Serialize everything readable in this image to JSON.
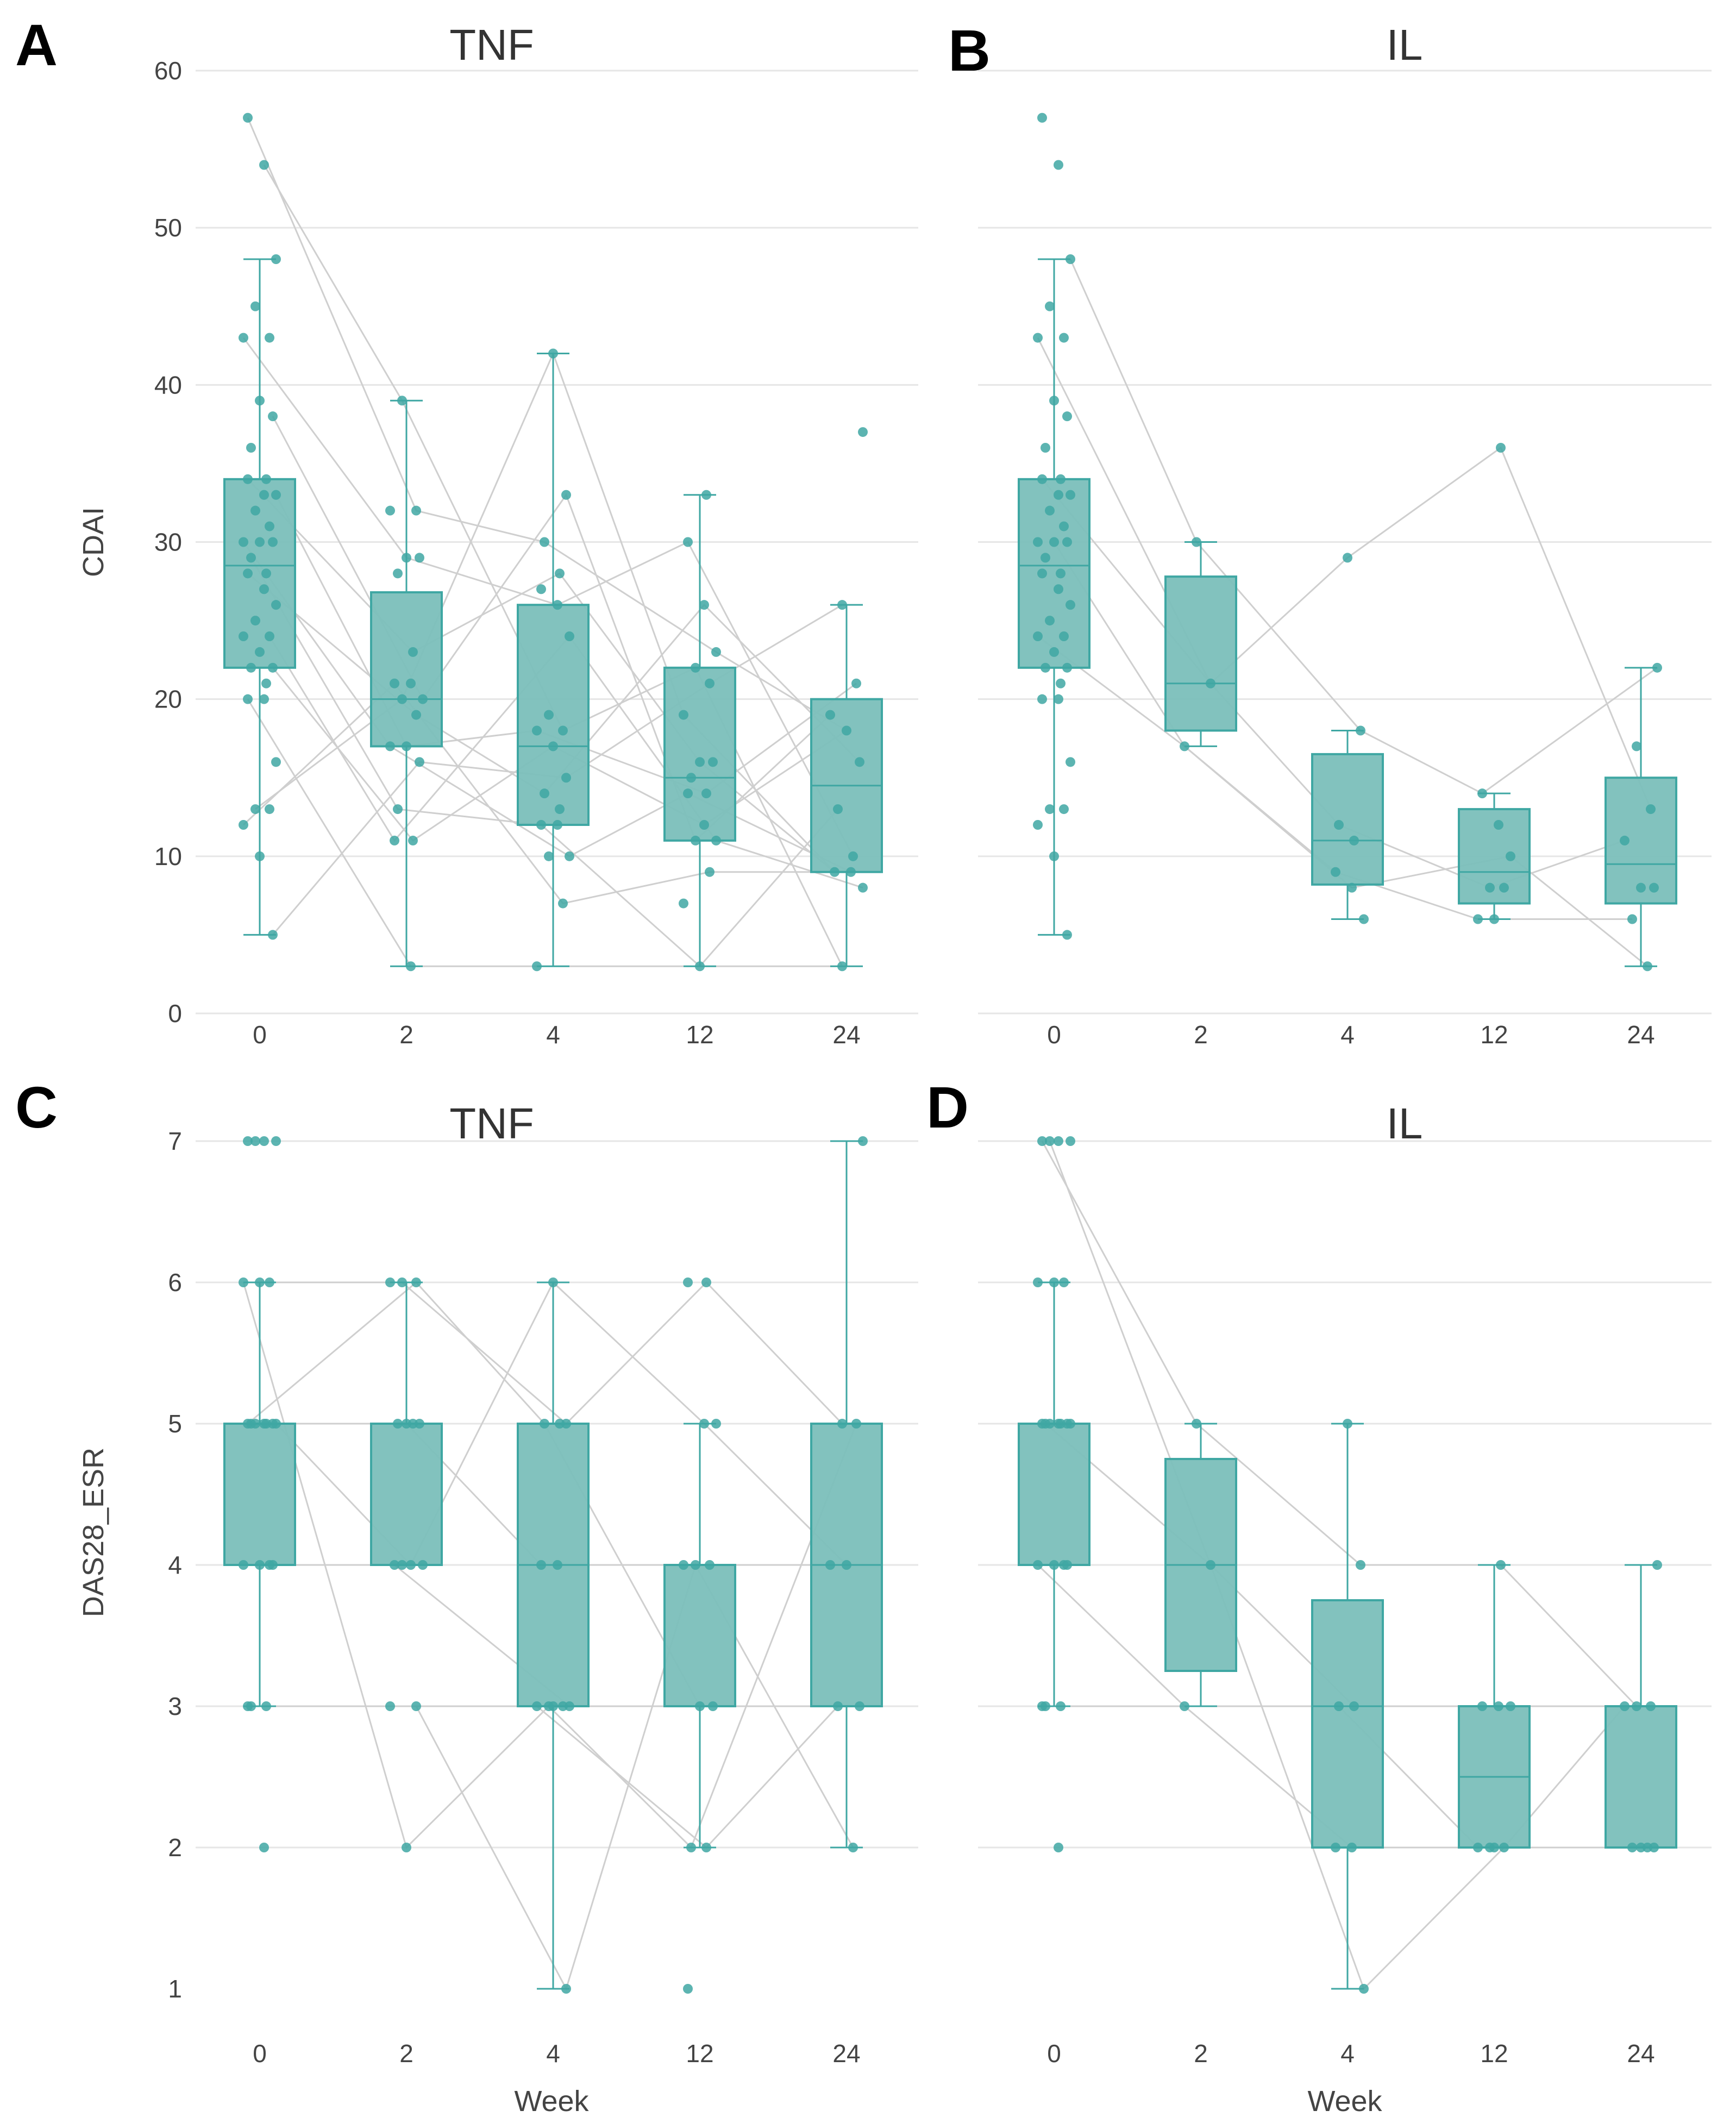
{
  "colors": {
    "box": "#3fa7a3",
    "box_fill": "#7bbfbb",
    "point": "#3fa7a3",
    "line": "#cfcfcf",
    "grid": "#e6e6e6"
  },
  "chart_data": [
    {
      "panel": "A",
      "title": "TNF",
      "type": "box",
      "ylabel": "CDAI",
      "xlabel": "",
      "categories": [
        "0",
        "2",
        "4",
        "12",
        "24"
      ],
      "ylim": [
        0,
        60
      ],
      "yticks": [
        0,
        10,
        20,
        30,
        40,
        50,
        60
      ],
      "boxes": [
        {
          "q1": 22,
          "median": 28.5,
          "q3": 34,
          "lo": 5,
          "hi": 48
        },
        {
          "q1": 17,
          "median": 20,
          "q3": 26.8,
          "lo": 3,
          "hi": 39
        },
        {
          "q1": 12,
          "median": 17,
          "q3": 26,
          "lo": 3,
          "hi": 42
        },
        {
          "q1": 11,
          "median": 15,
          "q3": 22,
          "lo": 3,
          "hi": 33
        },
        {
          "q1": 9,
          "median": 14.5,
          "q3": 20,
          "lo": 3,
          "hi": 26
        }
      ],
      "points": [
        [
          57,
          54,
          48,
          45,
          43,
          43,
          39,
          38,
          36,
          34,
          34,
          33,
          33,
          32,
          31,
          30,
          30,
          30,
          29,
          28,
          28,
          27,
          26,
          25,
          24,
          24,
          23,
          22,
          22,
          21,
          20,
          20,
          16,
          13,
          13,
          12,
          10,
          5
        ],
        [
          39,
          32,
          32,
          29,
          29,
          28,
          23,
          21,
          21,
          20,
          20,
          19,
          17,
          17,
          16,
          13,
          11,
          11,
          3
        ],
        [
          42,
          33,
          30,
          28,
          27,
          26,
          24,
          19,
          18,
          18,
          17,
          15,
          14,
          13,
          12,
          12,
          10,
          10,
          7,
          3
        ],
        [
          33,
          30,
          26,
          23,
          22,
          21,
          19,
          16,
          16,
          15,
          14,
          14,
          12,
          11,
          11,
          9,
          7,
          3
        ],
        [
          37,
          26,
          21,
          19,
          18,
          16,
          13,
          10,
          9,
          9,
          8,
          3
        ]
      ],
      "paths": [
        [
          0,
          1,
          2,
          3,
          4
        ],
        [
          1,
          0,
          8,
          4,
          11
        ],
        [
          5,
          3,
          5,
          1,
          7
        ],
        [
          7,
          9,
          1,
          14,
          3
        ],
        [
          10,
          6,
          3,
          7,
          8
        ],
        [
          12,
          13,
          9,
          10,
          2
        ],
        [
          15,
          12,
          16,
          11,
          9
        ],
        [
          18,
          15,
          14,
          17,
          6
        ],
        [
          20,
          11,
          12,
          2,
          5
        ],
        [
          24,
          17,
          6,
          13,
          10
        ],
        [
          27,
          16,
          10,
          12,
          4
        ],
        [
          30,
          18,
          19,
          17,
          11
        ],
        [
          33,
          10,
          0,
          6,
          8
        ],
        [
          35,
          7,
          18,
          15,
          9
        ],
        [
          37,
          14,
          11,
          5,
          1
        ]
      ]
    },
    {
      "panel": "B",
      "title": "IL",
      "type": "box",
      "ylabel": "",
      "xlabel": "",
      "categories": [
        "0",
        "2",
        "4",
        "12",
        "24"
      ],
      "ylim": [
        0,
        60
      ],
      "yticks": [
        0,
        10,
        20,
        30,
        40,
        50,
        60
      ],
      "boxes": [
        {
          "q1": 22,
          "median": 28.5,
          "q3": 34,
          "lo": 5,
          "hi": 48
        },
        {
          "q1": 18,
          "median": 21,
          "q3": 27.8,
          "lo": 17,
          "hi": 30
        },
        {
          "q1": 8.2,
          "median": 11,
          "q3": 16.5,
          "lo": 6,
          "hi": 18
        },
        {
          "q1": 7,
          "median": 9,
          "q3": 13,
          "lo": 6,
          "hi": 14
        },
        {
          "q1": 7,
          "median": 9.5,
          "q3": 15,
          "lo": 3,
          "hi": 22
        }
      ],
      "points": [
        [
          57,
          54,
          48,
          45,
          43,
          43,
          39,
          38,
          36,
          34,
          34,
          33,
          33,
          32,
          31,
          30,
          30,
          30,
          29,
          28,
          28,
          27,
          26,
          25,
          24,
          24,
          23,
          22,
          22,
          21,
          20,
          20,
          16,
          13,
          13,
          12,
          10,
          5
        ],
        [
          30,
          21,
          17
        ],
        [
          29,
          18,
          12,
          11,
          9,
          8,
          6
        ],
        [
          36,
          14,
          12,
          10,
          8,
          8,
          6,
          6
        ],
        [
          22,
          17,
          13,
          11,
          8,
          8,
          6,
          3
        ]
      ],
      "paths": [
        [
          2,
          0,
          1,
          1,
          0
        ],
        [
          10,
          1,
          2,
          4,
          3
        ],
        [
          16,
          2,
          4,
          6,
          6
        ],
        [
          5,
          1,
          0,
          0,
          2
        ],
        [
          25,
          2,
          5,
          3,
          7
        ]
      ]
    },
    {
      "panel": "C",
      "title": "TNF",
      "type": "box",
      "ylabel": "DAS28_ESR",
      "xlabel": "Week",
      "categories": [
        "0",
        "2",
        "4",
        "12",
        "24"
      ],
      "ylim": [
        0.5,
        7.5
      ],
      "yticks": [
        1,
        2,
        3,
        4,
        5,
        6,
        7
      ],
      "boxes": [
        {
          "q1": 4,
          "median": 5,
          "q3": 5,
          "lo": 3,
          "hi": 6
        },
        {
          "q1": 4,
          "median": 5,
          "q3": 5,
          "lo": 4,
          "hi": 6
        },
        {
          "q1": 3,
          "median": 4,
          "q3": 5,
          "lo": 1,
          "hi": 6
        },
        {
          "q1": 3,
          "median": 3,
          "q3": 4,
          "lo": 2,
          "hi": 5
        },
        {
          "q1": 3,
          "median": 4,
          "q3": 5,
          "lo": 2,
          "hi": 7
        }
      ],
      "points": [
        [
          7,
          7,
          7,
          7,
          6,
          6,
          6,
          5,
          5,
          5,
          5,
          5,
          5,
          5,
          4,
          4,
          4,
          4,
          3,
          3,
          3,
          2
        ],
        [
          6,
          6,
          6,
          5,
          5,
          5,
          5,
          4,
          4,
          4,
          4,
          3,
          3,
          2
        ],
        [
          6,
          5,
          5,
          5,
          4,
          4,
          3,
          3,
          3,
          3,
          3,
          1
        ],
        [
          6,
          6,
          5,
          5,
          4,
          4,
          4,
          3,
          3,
          2,
          2,
          1
        ],
        [
          7,
          5,
          5,
          4,
          4,
          3,
          3,
          2
        ]
      ],
      "paths": [
        [
          4,
          0,
          1,
          0,
          1
        ],
        [
          7,
          3,
          4,
          5,
          3
        ],
        [
          10,
          1,
          2,
          7,
          5
        ],
        [
          14,
          7,
          6,
          8,
          6
        ],
        [
          18,
          11,
          11,
          4,
          7
        ],
        [
          5,
          13,
          7,
          9,
          2
        ],
        [
          12,
          8,
          0,
          2,
          4
        ],
        [
          20,
          12,
          9,
          10,
          6
        ]
      ]
    },
    {
      "panel": "D",
      "title": "IL",
      "type": "box",
      "ylabel": "",
      "xlabel": "Week",
      "categories": [
        "0",
        "2",
        "4",
        "12",
        "24"
      ],
      "ylim": [
        0.5,
        7.5
      ],
      "yticks": [
        1,
        2,
        3,
        4,
        5,
        6,
        7
      ],
      "boxes": [
        {
          "q1": 4,
          "median": 5,
          "q3": 5,
          "lo": 3,
          "hi": 6
        },
        {
          "q1": 3.25,
          "median": 4,
          "q3": 4.75,
          "lo": 3,
          "hi": 5
        },
        {
          "q1": 2,
          "median": 3,
          "q3": 3.75,
          "lo": 1,
          "hi": 5
        },
        {
          "q1": 2,
          "median": 2.5,
          "q3": 3,
          "lo": 2,
          "hi": 4
        },
        {
          "q1": 2,
          "median": 3,
          "q3": 3,
          "lo": 2,
          "hi": 4
        }
      ],
      "points": [
        [
          7,
          7,
          7,
          7,
          6,
          6,
          6,
          5,
          5,
          5,
          5,
          5,
          5,
          5,
          4,
          4,
          4,
          4,
          3,
          3,
          3,
          2
        ],
        [
          5,
          4,
          3
        ],
        [
          5,
          4,
          3,
          3,
          2,
          2,
          1
        ],
        [
          4,
          3,
          3,
          3,
          2,
          2,
          2,
          2
        ],
        [
          4,
          3,
          3,
          3,
          2,
          2,
          2,
          2
        ]
      ],
      "paths": [
        [
          0,
          0,
          1,
          0,
          1
        ],
        [
          8,
          1,
          3,
          1,
          2
        ],
        [
          15,
          2,
          5,
          4,
          5
        ],
        [
          3,
          1,
          6,
          5,
          3
        ],
        [
          18,
          2,
          2,
          6,
          6
        ]
      ]
    }
  ]
}
